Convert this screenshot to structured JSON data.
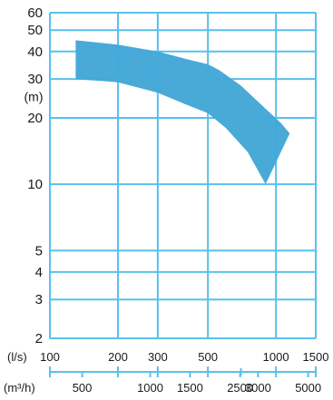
{
  "chart_data": {
    "type": "area",
    "title": "",
    "y_scale": "log",
    "x_scale": "log",
    "ylim": [
      2,
      60
    ],
    "xlim_ls": [
      100,
      1500
    ],
    "y_ticks": [
      "60",
      "50",
      "40",
      "30",
      "20",
      "10",
      "5",
      "4",
      "3",
      "2"
    ],
    "y_tick_values": [
      60,
      50,
      40,
      30,
      20,
      10,
      5,
      4,
      3,
      2
    ],
    "y_unit": "(m)",
    "y_unit_at": 25,
    "x_ls_unit": "(l/s)",
    "x_ls_ticks": [
      "100",
      "200",
      "300",
      "500",
      "1000",
      "1500"
    ],
    "x_ls_tick_values": [
      100,
      200,
      300,
      500,
      1000,
      1500
    ],
    "x_ls_minor_ticks": [
      700
    ],
    "x_m3h_unit": "(m³/h)",
    "x_m3h_ticks": [
      "500",
      "1000",
      "1500",
      "2500",
      "3000",
      "5000"
    ],
    "x_m3h_tick_values": [
      500,
      1000,
      1500,
      2500,
      3000,
      5000
    ],
    "grid": true,
    "grid_v": [
      100,
      200,
      300,
      500,
      1000,
      1500
    ],
    "grid_h": [
      60,
      50,
      40,
      30,
      20,
      10,
      5,
      4,
      3,
      2
    ],
    "colors": {
      "area": "#3aa3d5",
      "grid": "#58c0ee",
      "axis_text": "#1a1a1a"
    },
    "series": [
      {
        "upper_curve": [
          {
            "x": 130,
            "y": 45
          },
          {
            "x": 200,
            "y": 43
          },
          {
            "x": 300,
            "y": 40
          },
          {
            "x": 400,
            "y": 37
          },
          {
            "x": 500,
            "y": 35
          },
          {
            "x": 560,
            "y": 33
          },
          {
            "x": 700,
            "y": 28
          },
          {
            "x": 900,
            "y": 22
          },
          {
            "x": 1050,
            "y": 19
          },
          {
            "x": 1150,
            "y": 17
          }
        ],
        "lower_curve": [
          {
            "x": 130,
            "y": 30
          },
          {
            "x": 200,
            "y": 29
          },
          {
            "x": 300,
            "y": 26
          },
          {
            "x": 400,
            "y": 23
          },
          {
            "x": 500,
            "y": 21
          },
          {
            "x": 600,
            "y": 18
          },
          {
            "x": 750,
            "y": 14
          },
          {
            "x": 900,
            "y": 10
          }
        ]
      }
    ]
  }
}
